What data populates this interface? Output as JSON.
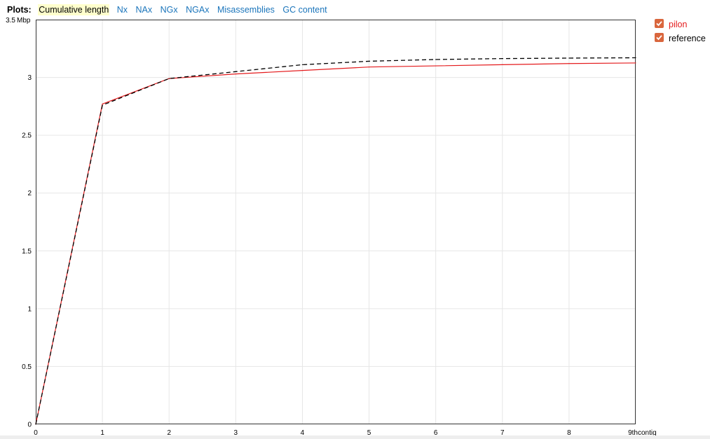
{
  "plots_bar": {
    "label": "Plots:",
    "tabs": [
      {
        "label": "Cumulative length",
        "selected": true
      },
      {
        "label": "Nx",
        "selected": false
      },
      {
        "label": "NAx",
        "selected": false
      },
      {
        "label": "NGx",
        "selected": false
      },
      {
        "label": "NGAx",
        "selected": false
      },
      {
        "label": "Misassemblies",
        "selected": false
      },
      {
        "label": "GC content",
        "selected": false
      }
    ]
  },
  "legend": {
    "items": [
      {
        "label": "pilon",
        "color": "#e41a1c",
        "checked": true
      },
      {
        "label": "reference",
        "color": "#000000",
        "checked": true
      }
    ],
    "checkbox_color": "#d9663d"
  },
  "chart_data": {
    "type": "line",
    "title": "",
    "xlabel": "contig",
    "ylabel": "Mbp",
    "xlim": [
      0,
      9
    ],
    "ylim": [
      0,
      3.5
    ],
    "grid": true,
    "x_ticks": [
      0,
      1,
      2,
      3,
      4,
      5,
      6,
      7,
      8,
      9
    ],
    "x_tick_labels": [
      "0",
      "1",
      "2",
      "3",
      "4",
      "5",
      "6",
      "7",
      "8",
      "9th"
    ],
    "x_unit_label": "contig",
    "y_ticks": [
      0,
      0.5,
      1,
      1.5,
      2,
      2.5,
      3,
      3.5
    ],
    "y_tick_labels": [
      "0",
      "0.5",
      "1",
      "1.5",
      "2",
      "2.5",
      "3",
      "3.5"
    ],
    "y_unit_label": "Mbp",
    "series": [
      {
        "name": "pilon",
        "color": "#e41a1c",
        "dashed": false,
        "x": [
          0,
          1,
          2,
          3,
          4,
          5,
          6,
          7,
          8,
          9
        ],
        "y": [
          0,
          2.77,
          2.99,
          3.03,
          3.06,
          3.09,
          3.1,
          3.11,
          3.12,
          3.125
        ]
      },
      {
        "name": "reference",
        "color": "#000000",
        "dashed": true,
        "x": [
          0,
          1,
          2,
          3,
          4,
          5,
          6,
          7,
          8,
          9
        ],
        "y": [
          0,
          2.76,
          2.99,
          3.05,
          3.11,
          3.14,
          3.155,
          3.163,
          3.167,
          3.17
        ]
      }
    ]
  }
}
